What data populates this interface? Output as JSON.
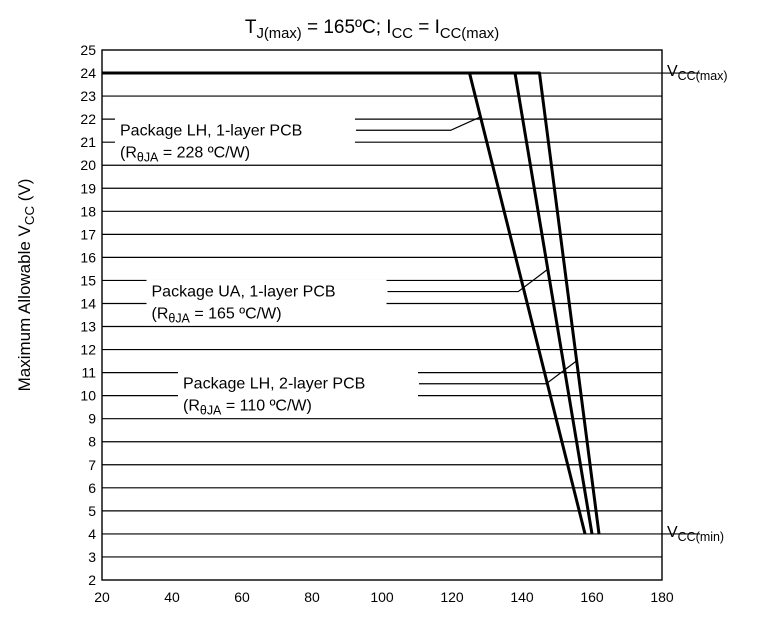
{
  "chart_data": {
    "type": "line",
    "title": {
      "parts": [
        {
          "t": "T",
          "sub": false
        },
        {
          "t": "J(max)",
          "sub": true
        },
        {
          "t": " = 165ºC; I",
          "sub": false
        },
        {
          "t": "CC",
          "sub": true
        },
        {
          "t": " =  I",
          "sub": false
        },
        {
          "t": "CC(max)",
          "sub": true
        }
      ]
    },
    "ylabel": {
      "parts": [
        {
          "t": "Maximum Allowable V",
          "sub": false
        },
        {
          "t": "CC",
          "sub": true
        },
        {
          "t": " (V)",
          "sub": false
        }
      ]
    },
    "xlabel": "",
    "xlim": [
      20,
      180
    ],
    "ylim": [
      2,
      25
    ],
    "xticks": [
      "20",
      "40",
      "60",
      "80",
      "100",
      "120",
      "140",
      "160",
      "180"
    ],
    "yticks": [
      "2",
      "3",
      "4",
      "5",
      "6",
      "7",
      "8",
      "9",
      "10",
      "11",
      "12",
      "13",
      "14",
      "15",
      "16",
      "17",
      "18",
      "19",
      "20",
      "21",
      "22",
      "23",
      "24",
      "25"
    ],
    "grid": "horizontal",
    "series": [
      {
        "key": "lh1",
        "x": [
          20,
          125,
          158
        ],
        "y": [
          24,
          24,
          4
        ]
      },
      {
        "key": "ua1",
        "x": [
          20,
          138,
          160
        ],
        "y": [
          24,
          24,
          4
        ]
      },
      {
        "key": "lh2",
        "x": [
          20,
          145,
          162
        ],
        "y": [
          24,
          24,
          4
        ]
      }
    ],
    "annotations": [
      {
        "key": "lh1",
        "line1": "Package LH, 1-layer PCB",
        "line2": [
          {
            "t": "(R",
            "sub": false
          },
          {
            "t": "θJA",
            "sub": true
          },
          {
            "t": " = 228 ºC/W)",
            "sub": false
          }
        ],
        "at": [
          24,
          21.3
        ],
        "target": [
          128.2,
          22.1
        ]
      },
      {
        "key": "ua1",
        "line1": "Package UA, 1-layer PCB",
        "line2": [
          {
            "t": "(R",
            "sub": false
          },
          {
            "t": "θJA",
            "sub": true
          },
          {
            "t": " = 165 ºC/W)",
            "sub": false
          }
        ],
        "at": [
          33,
          14.3
        ],
        "target": [
          147.5,
          15.5
        ]
      },
      {
        "key": "lh2",
        "line1": "Package LH, 2-layer PCB",
        "line2": [
          {
            "t": "(R",
            "sub": false
          },
          {
            "t": "θJA",
            "sub": true
          },
          {
            "t": " = 110 ºC/W)",
            "sub": false
          }
        ],
        "at": [
          42,
          10.3
        ],
        "target": [
          155.5,
          11.5
        ]
      }
    ],
    "edge_labels": [
      {
        "key": "vcc-max",
        "y": 24,
        "parts": [
          {
            "t": "V",
            "sub": false
          },
          {
            "t": "CC(max)",
            "sub": true
          }
        ]
      },
      {
        "key": "vcc-min",
        "y": 4,
        "parts": [
          {
            "t": "V",
            "sub": false
          },
          {
            "t": "CC(min)",
            "sub": true
          }
        ]
      }
    ]
  }
}
